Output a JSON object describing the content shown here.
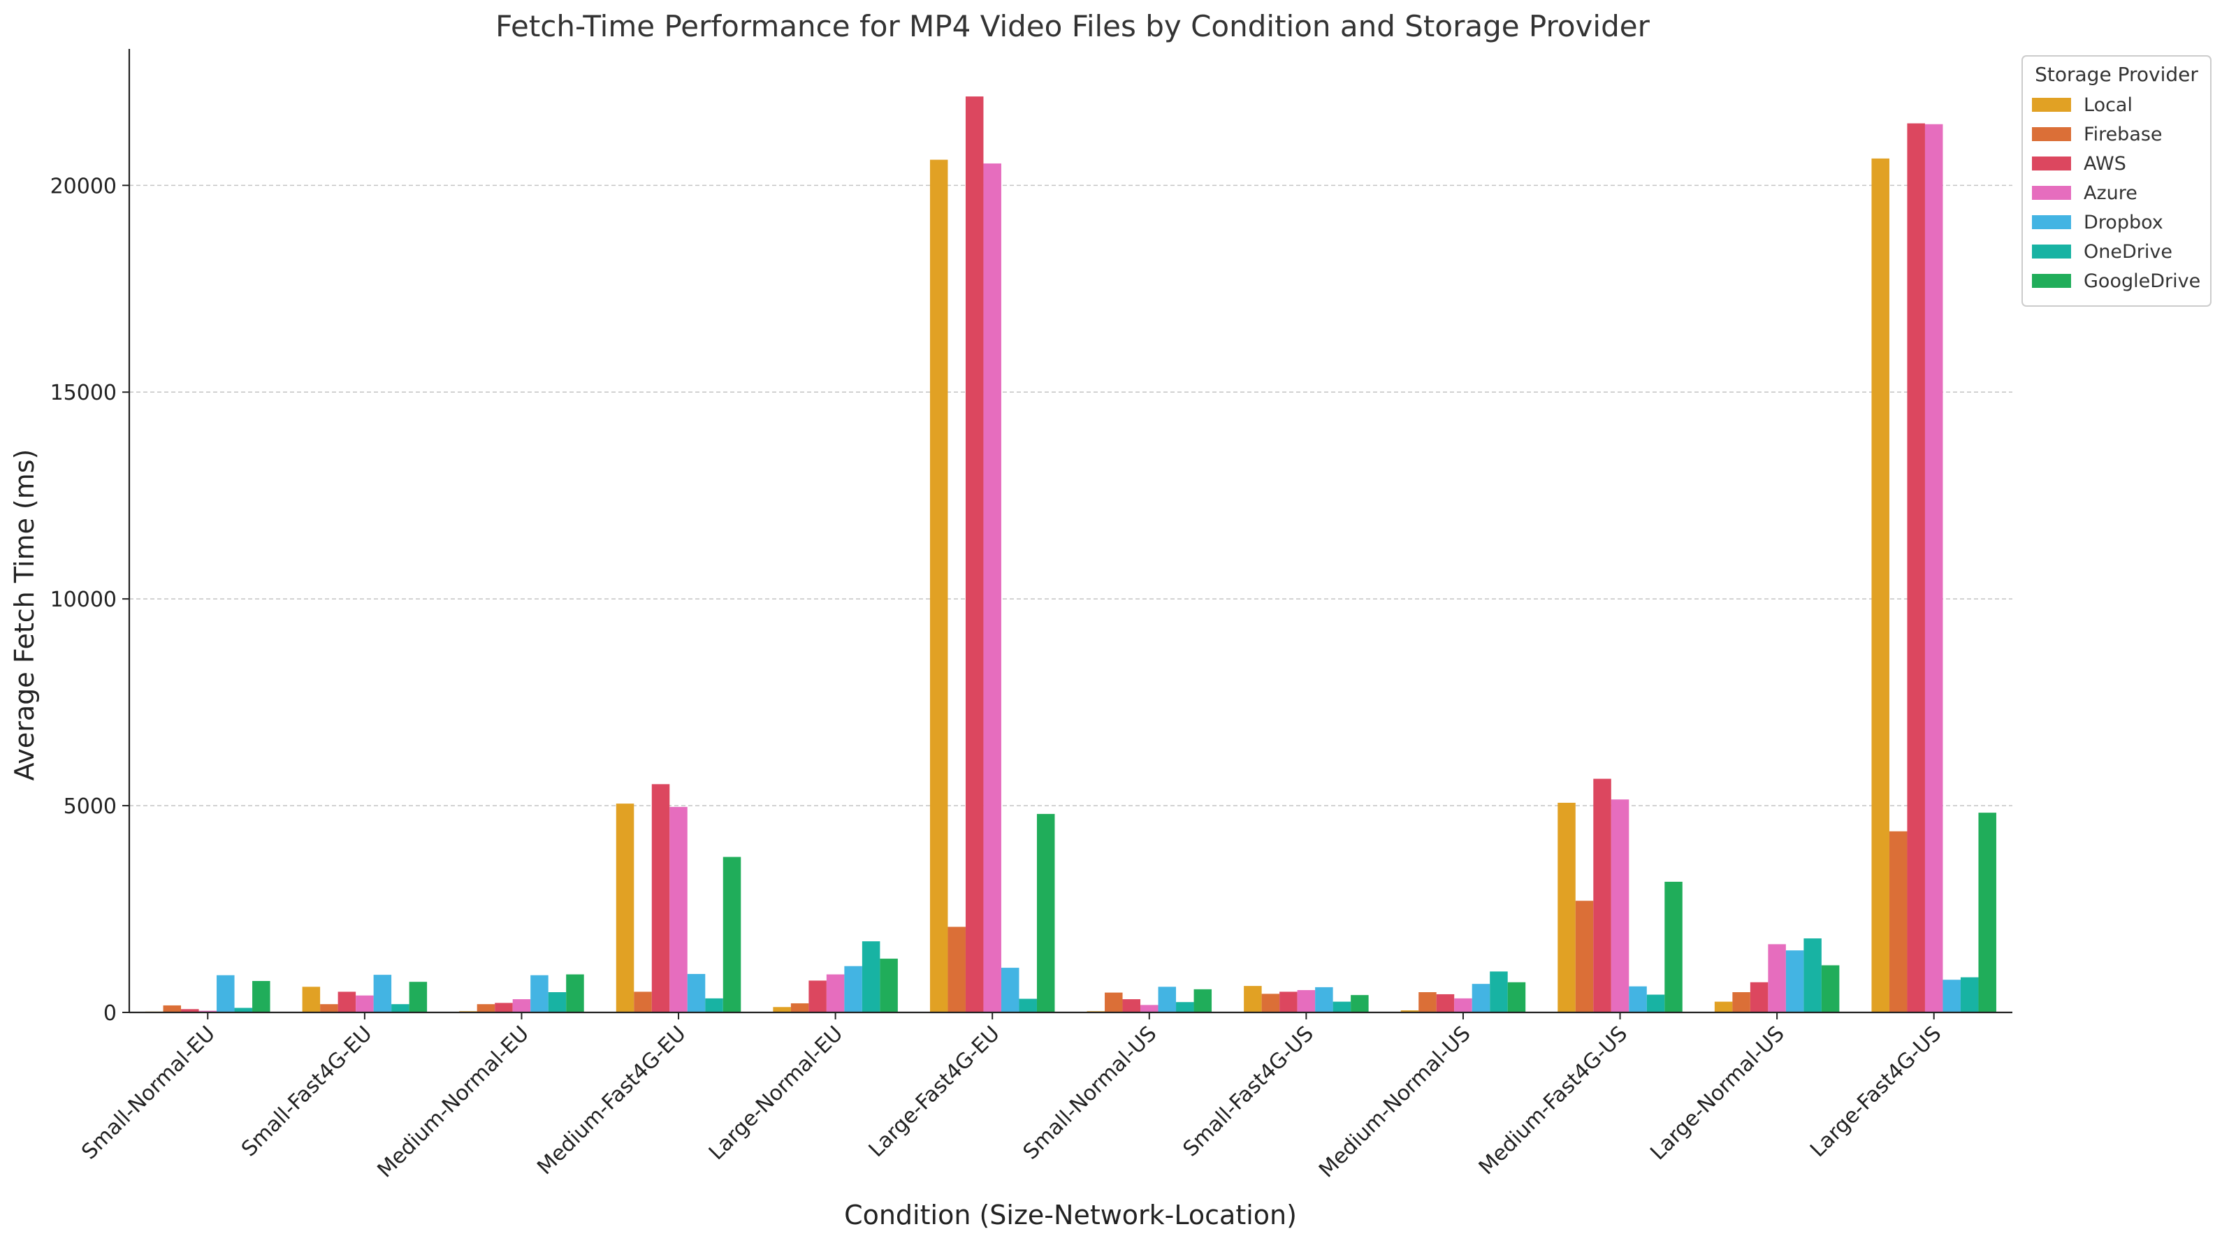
{
  "chart_data": {
    "type": "bar",
    "title": "Fetch-Time Performance for MP4 Video Files by Condition and Storage Provider",
    "xlabel": "Condition (Size-Network-Location)",
    "ylabel": "Average Fetch Time (ms)",
    "ylim": [
      0,
      23300
    ],
    "yticks": [
      0,
      5000,
      10000,
      15000,
      20000
    ],
    "grid": "y-dashed",
    "legend_title": "Storage Provider",
    "legend_position": "top-right",
    "categories": [
      "Small-Normal-EU",
      "Small-Fast4G-EU",
      "Medium-Normal-EU",
      "Medium-Fast4G-EU",
      "Large-Normal-EU",
      "Large-Fast4G-EU",
      "Small-Normal-US",
      "Small-Fast4G-US",
      "Medium-Normal-US",
      "Medium-Fast4G-US",
      "Large-Normal-US",
      "Large-Fast4G-US"
    ],
    "series": [
      {
        "name": "Local",
        "color": "#E1A124",
        "values": [
          20,
          620,
          30,
          5050,
          130,
          20620,
          30,
          640,
          50,
          5070,
          260,
          20650
        ]
      },
      {
        "name": "Firebase",
        "color": "#DB6F37",
        "values": [
          170,
          200,
          200,
          500,
          220,
          2070,
          480,
          450,
          490,
          2700,
          490,
          4380
        ]
      },
      {
        "name": "AWS",
        "color": "#DC475F",
        "values": [
          80,
          500,
          230,
          5520,
          770,
          22150,
          320,
          500,
          440,
          5650,
          730,
          21500
        ]
      },
      {
        "name": "Azure",
        "color": "#E66DBE",
        "values": [
          40,
          410,
          320,
          4970,
          920,
          20530,
          180,
          540,
          340,
          5150,
          1650,
          21480
        ]
      },
      {
        "name": "Dropbox",
        "color": "#43B4E3",
        "values": [
          900,
          910,
          900,
          930,
          1120,
          1080,
          620,
          610,
          690,
          630,
          1500,
          790
        ]
      },
      {
        "name": "OneDrive",
        "color": "#18B3A3",
        "values": [
          110,
          200,
          490,
          340,
          1720,
          330,
          250,
          260,
          990,
          430,
          1790,
          850
        ]
      },
      {
        "name": "GoogleDrive",
        "color": "#20AD5A",
        "values": [
          760,
          740,
          920,
          3760,
          1300,
          4800,
          560,
          420,
          730,
          3160,
          1140,
          4830
        ]
      }
    ]
  }
}
